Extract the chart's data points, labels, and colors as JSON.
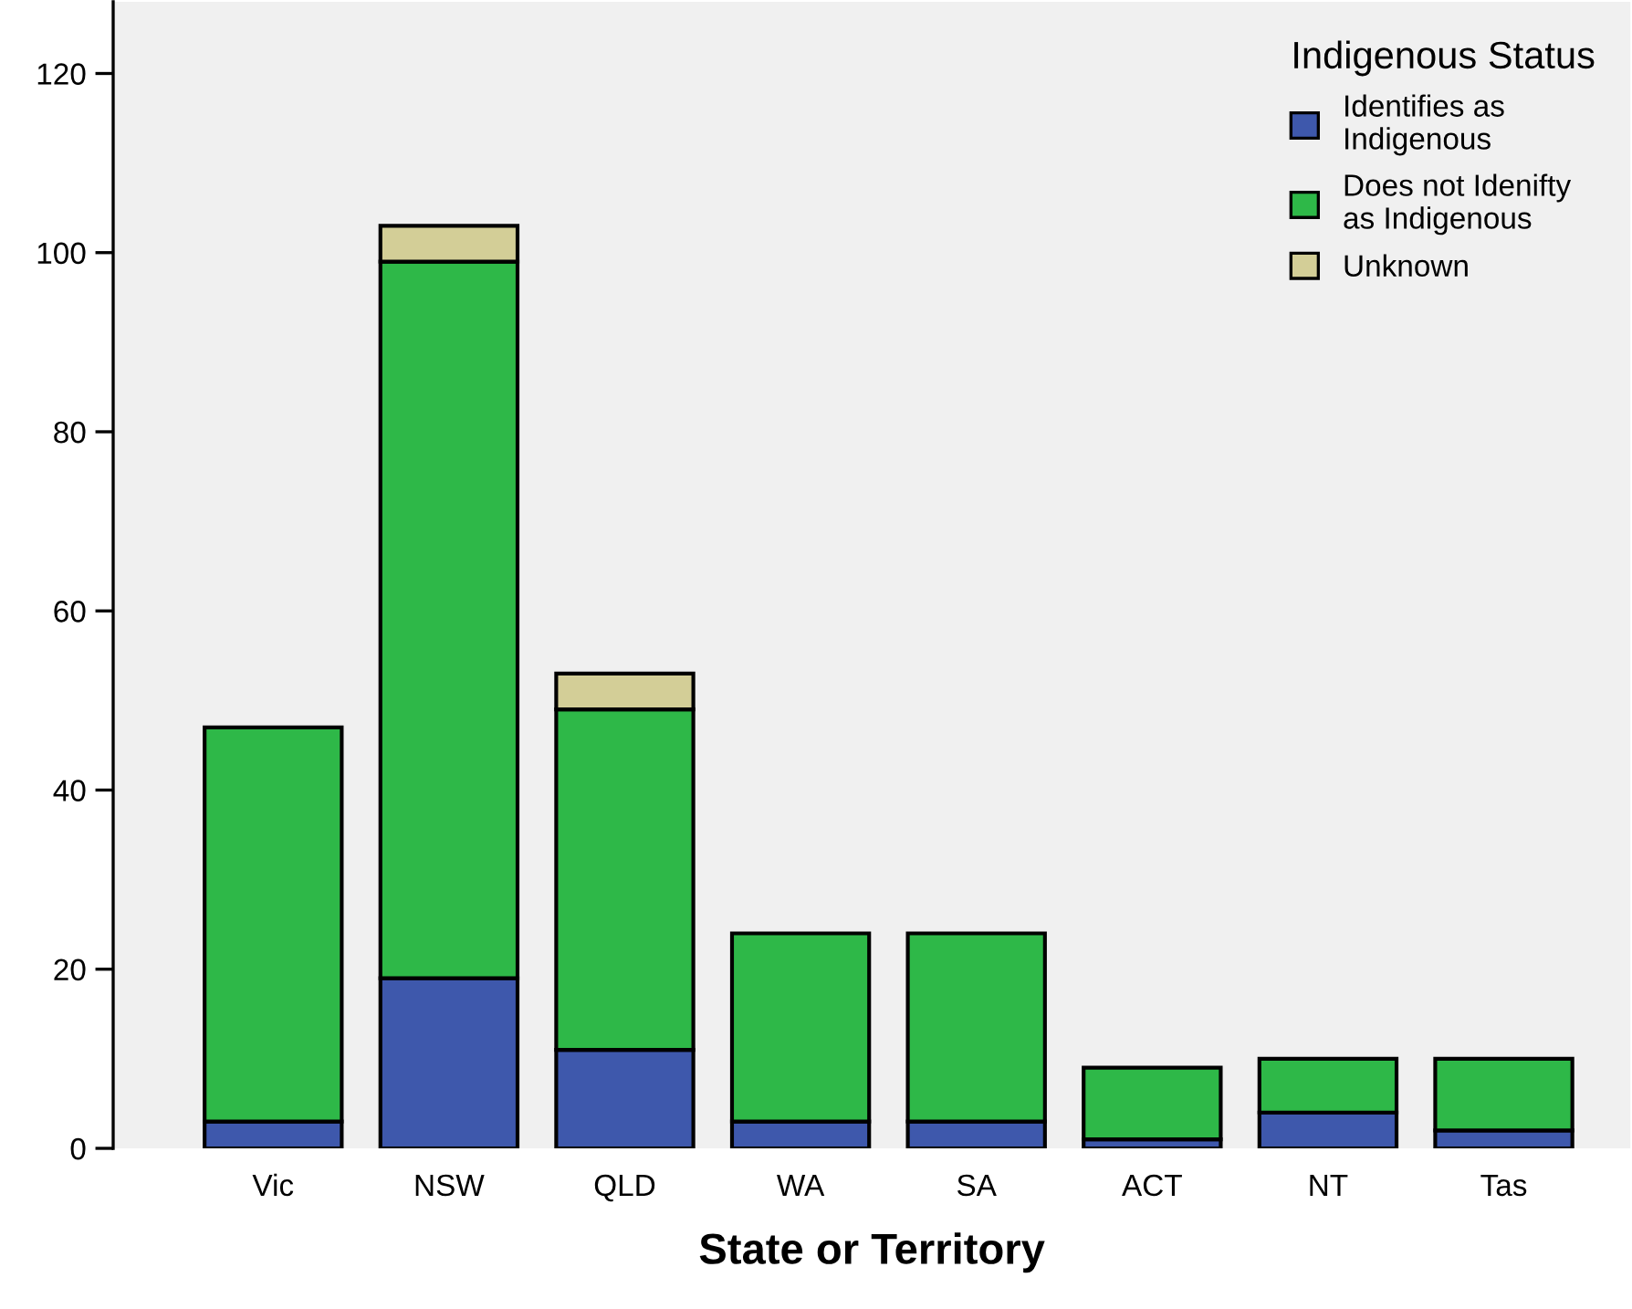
{
  "chart_data": {
    "type": "bar",
    "stacked": true,
    "xlabel": "State or Territory",
    "legend_title": "Indigenous Status",
    "legend": "top right",
    "grid": false,
    "categories": [
      "Vic",
      "NSW",
      "QLD",
      "WA",
      "SA",
      "ACT",
      "NT",
      "Tas"
    ],
    "series": [
      {
        "name": "Identifies as\nIndigenous",
        "color": "#3e58ac",
        "values": [
          3,
          19,
          11,
          3,
          3,
          1,
          4,
          2
        ]
      },
      {
        "name": "Does not Idenifty\nas Indigenous",
        "color": "#2eb848",
        "values": [
          44,
          80,
          38,
          21,
          21,
          8,
          6,
          8
        ]
      },
      {
        "name": "Unknown",
        "color": "#d3ce97",
        "values": [
          null,
          4,
          4,
          null,
          null,
          null,
          null,
          null
        ]
      }
    ],
    "ylim": [
      0,
      128
    ],
    "yticks": [
      0,
      20,
      40,
      60,
      80,
      100,
      120
    ]
  }
}
